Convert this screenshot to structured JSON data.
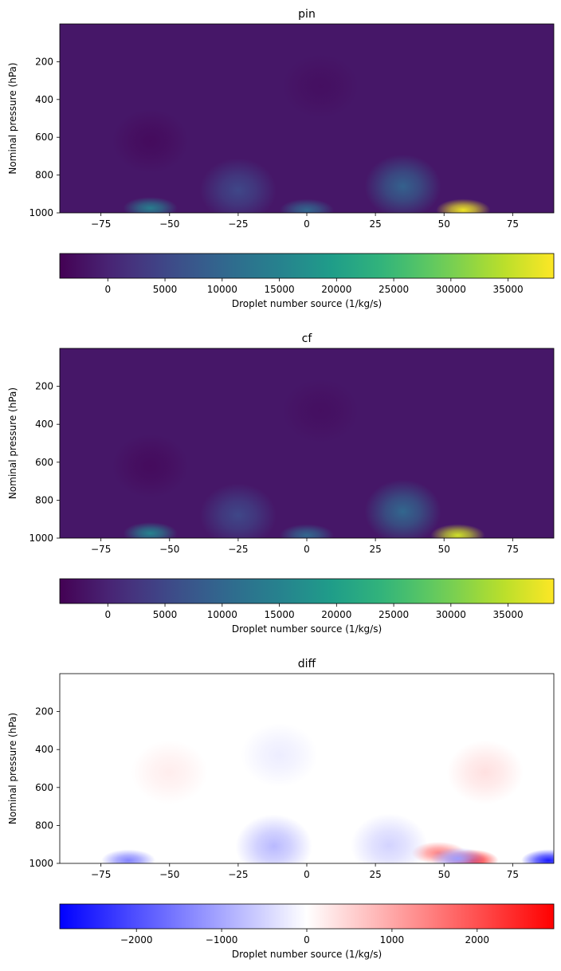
{
  "chart_data": [
    {
      "type": "heatmap",
      "title": "pin",
      "xlabel": "",
      "ylabel": "Nominal pressure (hPa)",
      "xlim": [
        -90,
        90
      ],
      "ylim": [
        1000,
        0
      ],
      "xticks": [
        -75,
        -50,
        -25,
        0,
        25,
        50,
        75
      ],
      "xtick_labels": [
        "−75",
        "−50",
        "−25",
        "0",
        "25",
        "50",
        "75"
      ],
      "yticks": [
        200,
        400,
        600,
        800,
        1000
      ],
      "ytick_labels": [
        "200",
        "400",
        "600",
        "800",
        "1000"
      ],
      "colormap": "viridis",
      "colorbar": {
        "label": "Droplet number source (1/kg/s)",
        "range": [
          -4200,
          39000
        ],
        "ticks": [
          0,
          5000,
          10000,
          15000,
          20000,
          25000,
          30000,
          35000
        ],
        "tick_labels": [
          "0",
          "5000",
          "10000",
          "15000",
          "20000",
          "25000",
          "30000",
          "35000"
        ]
      },
      "features": [
        {
          "lat": 57,
          "p": 985,
          "value": 38000
        },
        {
          "lat": -57,
          "p": 975,
          "value": 14000
        },
        {
          "lat": 0,
          "p": 985,
          "value": 10000
        },
        {
          "lat": 35,
          "p": 860,
          "value": 9000
        },
        {
          "lat": -25,
          "p": 880,
          "value": 5000
        },
        {
          "lat": -57,
          "p": 620,
          "value": -3000
        },
        {
          "lat": 5,
          "p": 330,
          "value": -2500
        }
      ]
    },
    {
      "type": "heatmap",
      "title": "cf",
      "xlabel": "",
      "ylabel": "Nominal pressure (hPa)",
      "xlim": [
        -90,
        90
      ],
      "ylim": [
        1000,
        0
      ],
      "xticks": [
        -75,
        -50,
        -25,
        0,
        25,
        50,
        75
      ],
      "xtick_labels": [
        "−75",
        "−50",
        "−25",
        "0",
        "25",
        "50",
        "75"
      ],
      "yticks": [
        200,
        400,
        600,
        800,
        1000
      ],
      "ytick_labels": [
        "200",
        "400",
        "600",
        "800",
        "1000"
      ],
      "colormap": "viridis",
      "colorbar": {
        "label": "Droplet number source (1/kg/s)",
        "range": [
          -4200,
          39000
        ],
        "ticks": [
          0,
          5000,
          10000,
          15000,
          20000,
          25000,
          30000,
          35000
        ],
        "tick_labels": [
          "0",
          "5000",
          "10000",
          "15000",
          "20000",
          "25000",
          "30000",
          "35000"
        ]
      },
      "features": [
        {
          "lat": 55,
          "p": 985,
          "value": 36000
        },
        {
          "lat": -57,
          "p": 975,
          "value": 15000
        },
        {
          "lat": 0,
          "p": 985,
          "value": 10000
        },
        {
          "lat": 35,
          "p": 860,
          "value": 10000
        },
        {
          "lat": -25,
          "p": 880,
          "value": 5000
        },
        {
          "lat": -57,
          "p": 620,
          "value": -3000
        },
        {
          "lat": 5,
          "p": 330,
          "value": -2500
        }
      ]
    },
    {
      "type": "heatmap",
      "title": "diff",
      "xlabel": "",
      "ylabel": "Nominal pressure (hPa)",
      "xlim": [
        -90,
        90
      ],
      "ylim": [
        1000,
        0
      ],
      "xticks": [
        -75,
        -50,
        -25,
        0,
        25,
        50,
        75
      ],
      "xtick_labels": [
        "−75",
        "−50",
        "−25",
        "0",
        "25",
        "50",
        "75"
      ],
      "yticks": [
        200,
        400,
        600,
        800,
        1000
      ],
      "ytick_labels": [
        "200",
        "400",
        "600",
        "800",
        "1000"
      ],
      "colormap": "bwr",
      "colorbar": {
        "label": "Droplet number source (1/kg/s)",
        "range": [
          -2900,
          2900
        ],
        "ticks": [
          -2000,
          -1000,
          0,
          1000,
          2000
        ],
        "tick_labels": [
          "−2000",
          "−1000",
          "0",
          "1000",
          "2000"
        ]
      },
      "features": [
        {
          "lat": 60,
          "p": 985,
          "value": 2600
        },
        {
          "lat": 88,
          "p": 985,
          "value": -2600
        },
        {
          "lat": -65,
          "p": 985,
          "value": -1400
        },
        {
          "lat": 48,
          "p": 945,
          "value": 1400
        },
        {
          "lat": 55,
          "p": 975,
          "value": -1100
        },
        {
          "lat": -12,
          "p": 910,
          "value": -800
        },
        {
          "lat": 30,
          "p": 905,
          "value": -500
        },
        {
          "lat": 65,
          "p": 520,
          "value": 350
        },
        {
          "lat": -10,
          "p": 430,
          "value": -200
        },
        {
          "lat": -50,
          "p": 520,
          "value": 200
        }
      ]
    }
  ]
}
